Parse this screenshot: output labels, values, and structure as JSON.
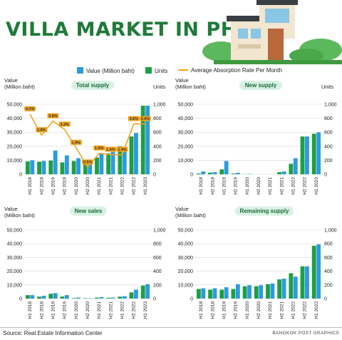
{
  "title": "VILLA MARKET IN PHUKET",
  "legend": {
    "value": "Value (Million baht)",
    "units": "Units",
    "rate": "Average Absorption Rate Per Month"
  },
  "colors": {
    "value": "#2b9be0",
    "units": "#1e9e45",
    "rate": "#f2a31b",
    "grid": "#d8d8d8",
    "title": "#1f7a3a"
  },
  "axis": {
    "left_label_1": "Value",
    "left_label_2": "(Million baht)",
    "right_label": "Units"
  },
  "source": "Source: Real Estate Information Center",
  "credit": "BANGKOK POST GRAPHICS",
  "chart_data": [
    {
      "type": "bar",
      "title": "Total supply",
      "categories": [
        "H1 2018",
        "H2 2018",
        "H1 2019",
        "H2 2019",
        "H1 2020",
        "H2 2020",
        "H1 2021",
        "H2 2021",
        "H1 2022",
        "H2 2022",
        "H1 2023"
      ],
      "ylim": [
        0,
        50000
      ],
      "y2lim": [
        0,
        1000
      ],
      "series": [
        {
          "name": "Value (Million baht)",
          "axis": "left",
          "values": [
            9200,
            9000,
            9800,
            8500,
            9500,
            8500,
            12000,
            15000,
            20000,
            27000,
            49000
          ]
        },
        {
          "name": "Units",
          "axis": "right",
          "values": [
            200,
            190,
            340,
            270,
            230,
            190,
            300,
            320,
            360,
            590,
            980
          ]
        },
        {
          "name": "Average Absorption Rate Per Month",
          "type": "line",
          "values": [
            4.3,
            2.8,
            3.8,
            3.2,
            1.9,
            0.5,
            1.5,
            1.4,
            1.4,
            3.6,
            3.6
          ],
          "labels": [
            "4.3%",
            "2.8%",
            "3.8%",
            "3.2%",
            "1.9%",
            "0.5%",
            "1.5%",
            "1.4%",
            "1.4%",
            "3.6%",
            "3.6%"
          ]
        }
      ]
    },
    {
      "type": "bar",
      "title": "New supply",
      "categories": [
        "H1 2018",
        "H2 2018",
        "H1 2019",
        "H2 2019",
        "H1 2020",
        "H2 2020",
        "H1 2021",
        "H2 2021",
        "H1 2022",
        "H2 2022",
        "H1 2023"
      ],
      "ylim": [
        0,
        50000
      ],
      "y2lim": [
        0,
        1000
      ],
      "series": [
        {
          "name": "Value (Million baht)",
          "axis": "left",
          "values": [
            600,
            1200,
            3500,
            500,
            100,
            0,
            0,
            1500,
            7500,
            27000,
            29000
          ]
        },
        {
          "name": "Units",
          "axis": "right",
          "values": [
            40,
            30,
            190,
            20,
            5,
            0,
            0,
            40,
            230,
            540,
            600
          ]
        }
      ]
    },
    {
      "type": "bar",
      "title": "New sales",
      "categories": [
        "H1 2018",
        "H2 2018",
        "H1 2019",
        "H2 2019",
        "H1 2020",
        "H2 2020",
        "H1 2021",
        "H2 2021",
        "H1 2022",
        "H2 2022",
        "H1 2023"
      ],
      "ylim": [
        0,
        50000
      ],
      "y2lim": [
        0,
        1000
      ],
      "series": [
        {
          "name": "Value (Million baht)",
          "axis": "left",
          "values": [
            2500,
            1400,
            3500,
            1500,
            400,
            300,
            700,
            600,
            1400,
            4500,
            9500
          ]
        },
        {
          "name": "Units",
          "axis": "right",
          "values": [
            50,
            40,
            80,
            50,
            15,
            5,
            20,
            15,
            35,
            130,
            210
          ]
        }
      ]
    },
    {
      "type": "bar",
      "title": "Remaining supply",
      "categories": [
        "H1 2018",
        "H2 2018",
        "H1 2019",
        "H2 2019",
        "H1 2020",
        "H2 2020",
        "H1 2021",
        "H2 2021",
        "H1 2022",
        "H2 2022",
        "H1 2023"
      ],
      "ylim": [
        0,
        50000
      ],
      "y2lim": [
        0,
        1000
      ],
      "series": [
        {
          "name": "Value (Million baht)",
          "axis": "left",
          "values": [
            7000,
            6500,
            6500,
            7000,
            9000,
            9000,
            10500,
            14000,
            18500,
            23500,
            38500
          ]
        },
        {
          "name": "Units",
          "axis": "right",
          "values": [
            150,
            150,
            165,
            210,
            195,
            195,
            220,
            290,
            320,
            470,
            790
          ]
        }
      ]
    }
  ]
}
